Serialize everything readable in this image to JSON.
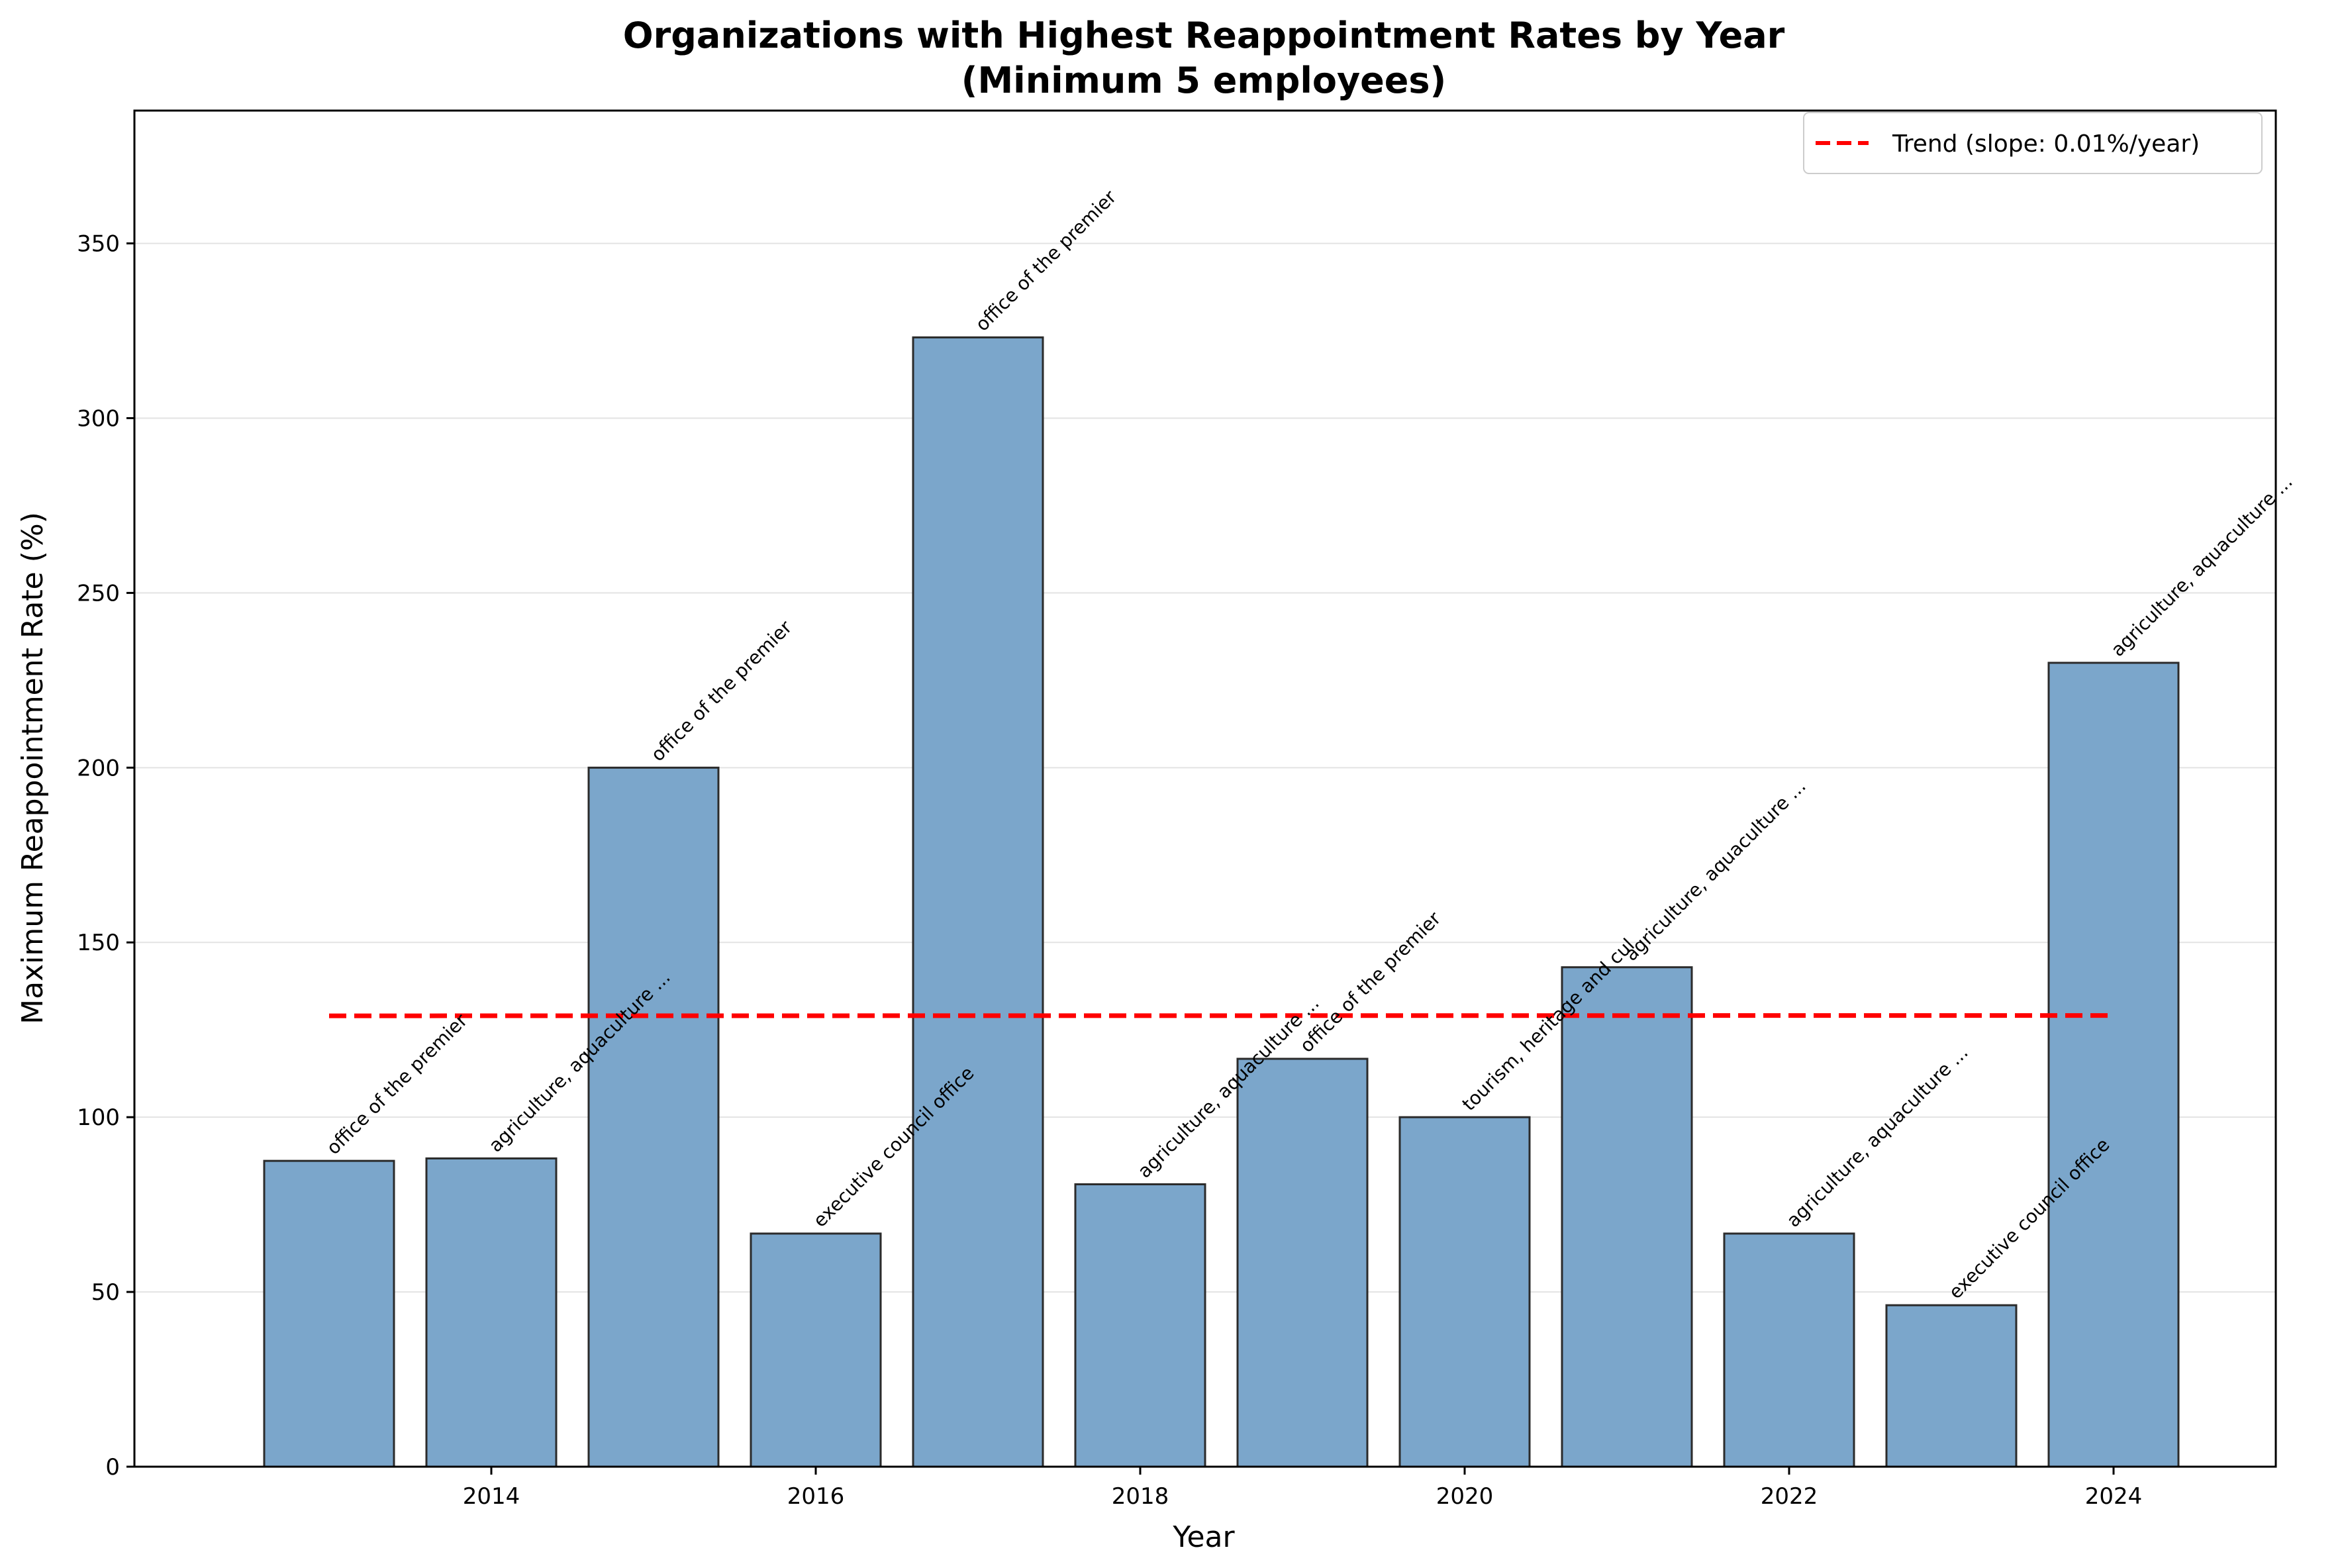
{
  "chart_data": {
    "type": "bar",
    "title": "Organizations with Highest Reappointment Rates by Year",
    "subtitle": "(Minimum 5 employees)",
    "xlabel": "Year",
    "ylabel": "Maximum Reappointment Rate (%)",
    "x": [
      2013,
      2014,
      2015,
      2016,
      2017,
      2018,
      2019,
      2020,
      2021,
      2022,
      2023,
      2024
    ],
    "values": [
      87.5,
      88.2,
      200.0,
      66.7,
      323.1,
      80.8,
      116.7,
      100.0,
      142.9,
      66.7,
      46.2,
      230.0
    ],
    "labels": [
      "office of the premier",
      "agriculture, aquaculture ...",
      "office of the premier",
      "executive council office",
      "office of the premier",
      "agriculture, aquaculture ...",
      "office of the premier",
      "tourism, heritage and cul",
      "agriculture, aquaculture ...",
      "agriculture, aquaculture ...",
      "executive council office",
      "agriculture, aquaculture ..."
    ],
    "xlim": [
      2011.8,
      2025.0
    ],
    "ylim": [
      0,
      388
    ],
    "xticks": [
      2014,
      2016,
      2018,
      2020,
      2022,
      2024
    ],
    "yticks": [
      0,
      50,
      100,
      150,
      200,
      250,
      300,
      350
    ],
    "bar_color": "#7ba6cb",
    "bar_edge_color": "#2b2b2b",
    "grid": "y",
    "trend": {
      "label": "Trend (slope: 0.01%/year)",
      "x": [
        2013,
        2024
      ],
      "y": [
        129.0,
        129.1
      ],
      "color": "#ff0000",
      "style": "dashed"
    },
    "legend_position": "top-right"
  }
}
